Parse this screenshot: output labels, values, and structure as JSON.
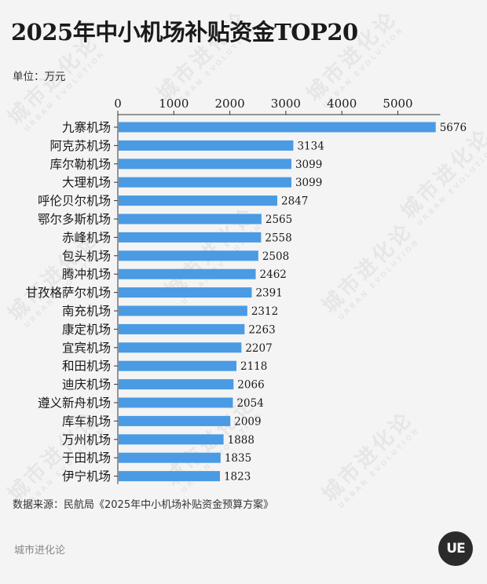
{
  "title": "2025年中小机场补贴资金TOP20",
  "unit_label": "单位：万元",
  "source": "数据来源：民航局《2025年中小机场补贴资金预算方案》",
  "footer_brand": "城市进化论",
  "logo_text": "UE",
  "watermark": {
    "cn": "城市进化论",
    "en": "URBAN EVOLUTION"
  },
  "colors": {
    "bar": "#4a9be3",
    "axis": "#333333",
    "background": "#f4f4f4"
  },
  "chart_data": {
    "type": "bar",
    "orientation": "horizontal",
    "title": "2025年中小机场补贴资金TOP20",
    "xlabel": "",
    "ylabel": "",
    "unit": "万元",
    "xlim": [
      0,
      5700
    ],
    "xticks": [
      0,
      1000,
      2000,
      3000,
      4000,
      5000
    ],
    "xaxis_position": "top",
    "grid": false,
    "categories": [
      "九寨机场",
      "阿克苏机场",
      "库尔勒机场",
      "大理机场",
      "呼伦贝尔机场",
      "鄂尔多斯机场",
      "赤峰机场",
      "包头机场",
      "腾冲机场",
      "甘孜格萨尔机场",
      "南充机场",
      "康定机场",
      "宜宾机场",
      "和田机场",
      "迪庆机场",
      "遵义新舟机场",
      "库车机场",
      "万州机场",
      "于田机场",
      "伊宁机场"
    ],
    "values": [
      5676,
      3134,
      3099,
      3099,
      2847,
      2565,
      2558,
      2508,
      2462,
      2391,
      2312,
      2263,
      2207,
      2118,
      2066,
      2054,
      2009,
      1888,
      1835,
      1823
    ]
  }
}
